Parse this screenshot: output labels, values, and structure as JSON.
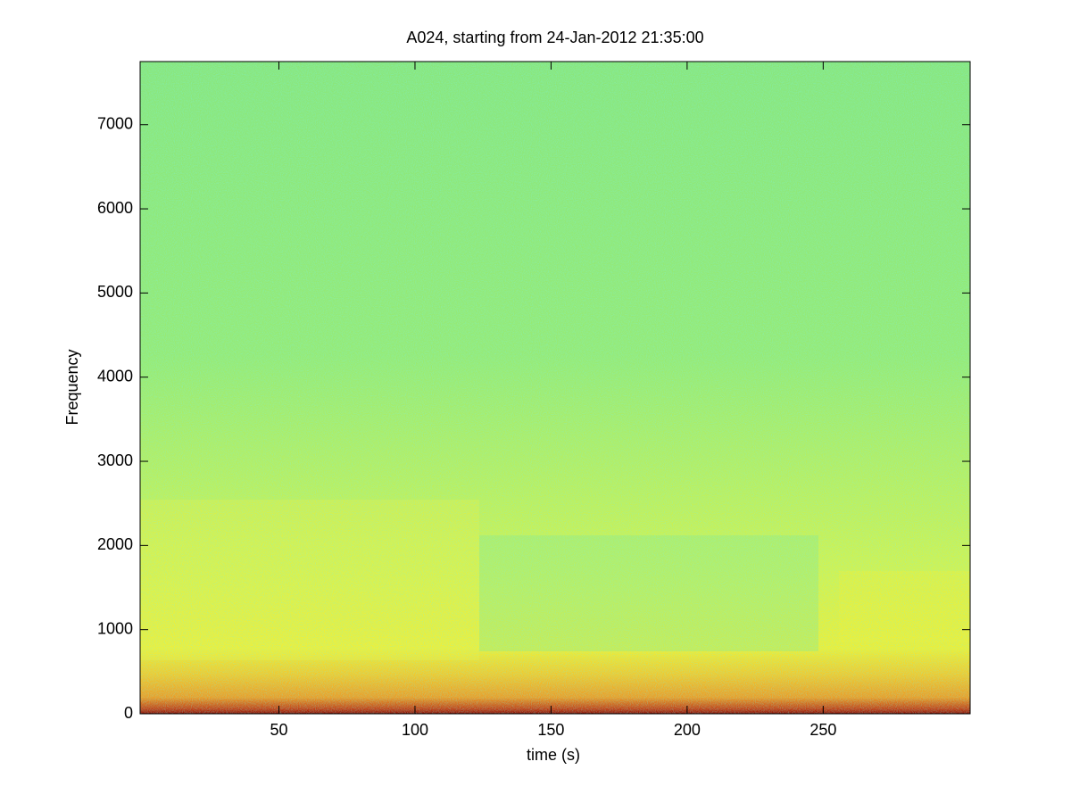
{
  "chart_data": {
    "type": "spectrogram",
    "title": "A024, starting from 24-Jan-2012 21:35:00",
    "x_label": "time (s)",
    "y_label": "Frequency",
    "xlim": [
      -1,
      304
    ],
    "xticks": [
      50,
      100,
      150,
      200,
      250
    ],
    "ylim": [
      0,
      7750
    ],
    "yticks": [
      0,
      1000,
      2000,
      3000,
      4000,
      5000,
      6000,
      7000
    ],
    "grid": false
  }
}
